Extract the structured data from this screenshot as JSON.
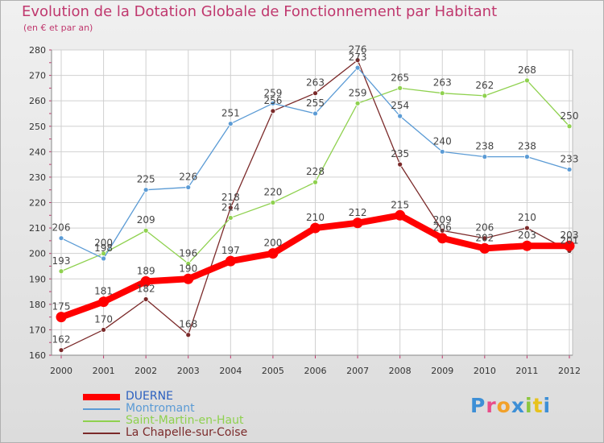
{
  "header": {
    "title": "Evolution de la Dotation Globale de Fonctionnement par Habitant",
    "subtitle": "(en € et par an)"
  },
  "brand": {
    "letters": [
      "P",
      "r",
      "o",
      "x",
      "i",
      "t",
      "i"
    ],
    "colors": [
      "#3d8fd6",
      "#e84d8a",
      "#f2a12a",
      "#3d8fd6",
      "#8cc63f",
      "#e8c21c",
      "#3d8fd6"
    ]
  },
  "colors": {
    "axis_text": "#333333",
    "label_text": "#444444",
    "grid": "#d0d0d0",
    "tick_mark": "#c0386e"
  },
  "chart_data": {
    "type": "line",
    "title": "Evolution de la Dotation Globale de Fonctionnement par Habitant",
    "subtitle": "(en € et par an)",
    "x": [
      "2000",
      "2001",
      "2002",
      "2003",
      "2004",
      "2005",
      "2006",
      "2007",
      "2008",
      "2009",
      "2010",
      "2011",
      "2012"
    ],
    "ylim": [
      160,
      280
    ],
    "yticks": [
      160,
      170,
      180,
      190,
      200,
      210,
      220,
      230,
      240,
      250,
      260,
      270,
      280
    ],
    "grid": true,
    "legend_position": "bottom-left",
    "series": [
      {
        "name": "DUERNE",
        "color": "#ff0000",
        "legend_color": "#2b5fbf",
        "values": [
          175,
          181,
          189,
          190,
          197,
          200,
          210,
          212,
          215,
          206,
          202,
          203,
          203
        ],
        "labels": [
          "175",
          "181",
          "189",
          "190",
          "197",
          "200",
          "210",
          "212",
          "215",
          "206",
          "202",
          "203",
          "203"
        ]
      },
      {
        "name": "Montromant",
        "color": "#5b9bd5",
        "legend_color": "#5b9bd5",
        "values": [
          206,
          198,
          225,
          226,
          251,
          259,
          255,
          273,
          254,
          240,
          238,
          238,
          233
        ],
        "labels": [
          "206",
          "198",
          "225",
          "226",
          "251",
          "259",
          "255",
          "273",
          "254",
          "240",
          "238",
          "238",
          "233"
        ]
      },
      {
        "name": "Saint-Martin-en-Haut",
        "color": "#8fd14f",
        "legend_color": "#8fd14f",
        "values": [
          193,
          200,
          209,
          196,
          214,
          220,
          228,
          259,
          265,
          263,
          262,
          268,
          250
        ],
        "labels": [
          "193",
          "200",
          "209",
          "196",
          "214",
          "220",
          "228",
          "259",
          "265",
          "263",
          "262",
          "268",
          "250"
        ]
      },
      {
        "name": "La Chapelle-sur-Coise",
        "color": "#7b2a2a",
        "legend_color": "#7b2a2a",
        "values": [
          162,
          170,
          182,
          168,
          218,
          256,
          263,
          276,
          235,
          209,
          206,
          210,
          201
        ],
        "labels": [
          "162",
          "170",
          "182",
          "168",
          "218",
          "256",
          "263",
          "276",
          "235",
          "209",
          "206",
          "210",
          "201"
        ]
      }
    ]
  }
}
